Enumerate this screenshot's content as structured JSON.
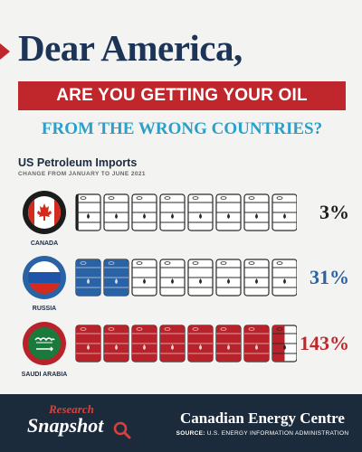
{
  "headline": {
    "line1": "Dear America,",
    "line2": "ARE YOU GETTING YOUR OIL",
    "line3": "FROM THE WRONG COUNTRIES?"
  },
  "chart_data": {
    "type": "pictogram",
    "title": "US Petroleum Imports",
    "subtitle": "CHANGE FROM JANUARY TO JUNE 2021",
    "barrels_per_row": 8,
    "rows": [
      {
        "country": "CANADA",
        "value_label": "3%",
        "value": 3,
        "fill_barrels": 0.1,
        "color": "#1c1c1c",
        "value_color": "#1c1c1c",
        "flag": "canada-flag"
      },
      {
        "country": "RUSSIA",
        "value_label": "31%",
        "value": 31,
        "fill_barrels": 2,
        "color": "#2a62a6",
        "value_color": "#2a62a6",
        "flag": "russia-flag"
      },
      {
        "country": "SAUDI ARABIA",
        "value_label": "143%",
        "value": 143,
        "fill_barrels": 7.5,
        "color": "#b8232b",
        "value_color": "#c0272d",
        "flag": "saudi-arabia-flag"
      }
    ]
  },
  "footer": {
    "research": "Research",
    "snapshot": "Snapshot",
    "org": "Canadian Energy Centre",
    "source_label": "SOURCE:",
    "source_text": "U.S. ENERGY INFORMATION ADMINISTRATION"
  },
  "colors": {
    "navy": "#1c3557",
    "red": "#c0272d",
    "blue": "#2b9fc9",
    "footer": "#1b2b3c"
  }
}
